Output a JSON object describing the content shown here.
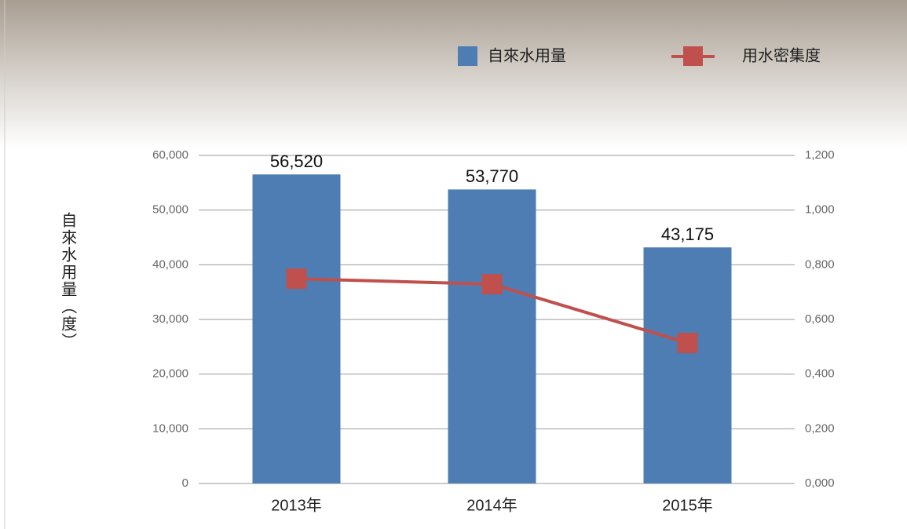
{
  "chart_data": {
    "type": "bar",
    "y_label": "自來水用量（度）",
    "categories": [
      "2013年",
      "2014年",
      "2015年"
    ],
    "series": [
      {
        "name": "自來水用量",
        "type": "bar",
        "color": "#4e7db3",
        "values": [
          56520,
          53770,
          43175
        ],
        "value_labels": [
          "56,520",
          "53,770",
          "43,175"
        ]
      },
      {
        "name": "用水密集度",
        "type": "line",
        "axis": "y2",
        "color": "#c0504d",
        "values": [
          0.749,
          0.729,
          0.514
        ]
      }
    ],
    "ylim": [
      0,
      60000
    ],
    "yticks": [
      0,
      {
        "value": 10000,
        "label": "10,000"
      },
      {
        "value": 20000,
        "label": "20,000"
      },
      {
        "value": 30000,
        "label": "30,000"
      },
      {
        "value": 40000,
        "label": "40,000"
      },
      {
        "value": 50000,
        "label": "50,000"
      },
      {
        "value": 60000,
        "label": "60,000"
      }
    ],
    "y2lim": [
      0,
      1.2
    ],
    "y2ticks": [
      {
        "value": 0,
        "label": "0,000"
      },
      {
        "value": 0.2,
        "label": "0,200"
      },
      {
        "value": 0.4,
        "label": "0,400"
      },
      {
        "value": 0.6,
        "label": "0,600"
      },
      {
        "value": 0.8,
        "label": "0,800"
      },
      {
        "value": 1.0,
        "label": "1,000"
      },
      {
        "value": 1.2,
        "label": "1,200"
      }
    ],
    "grid": true
  }
}
